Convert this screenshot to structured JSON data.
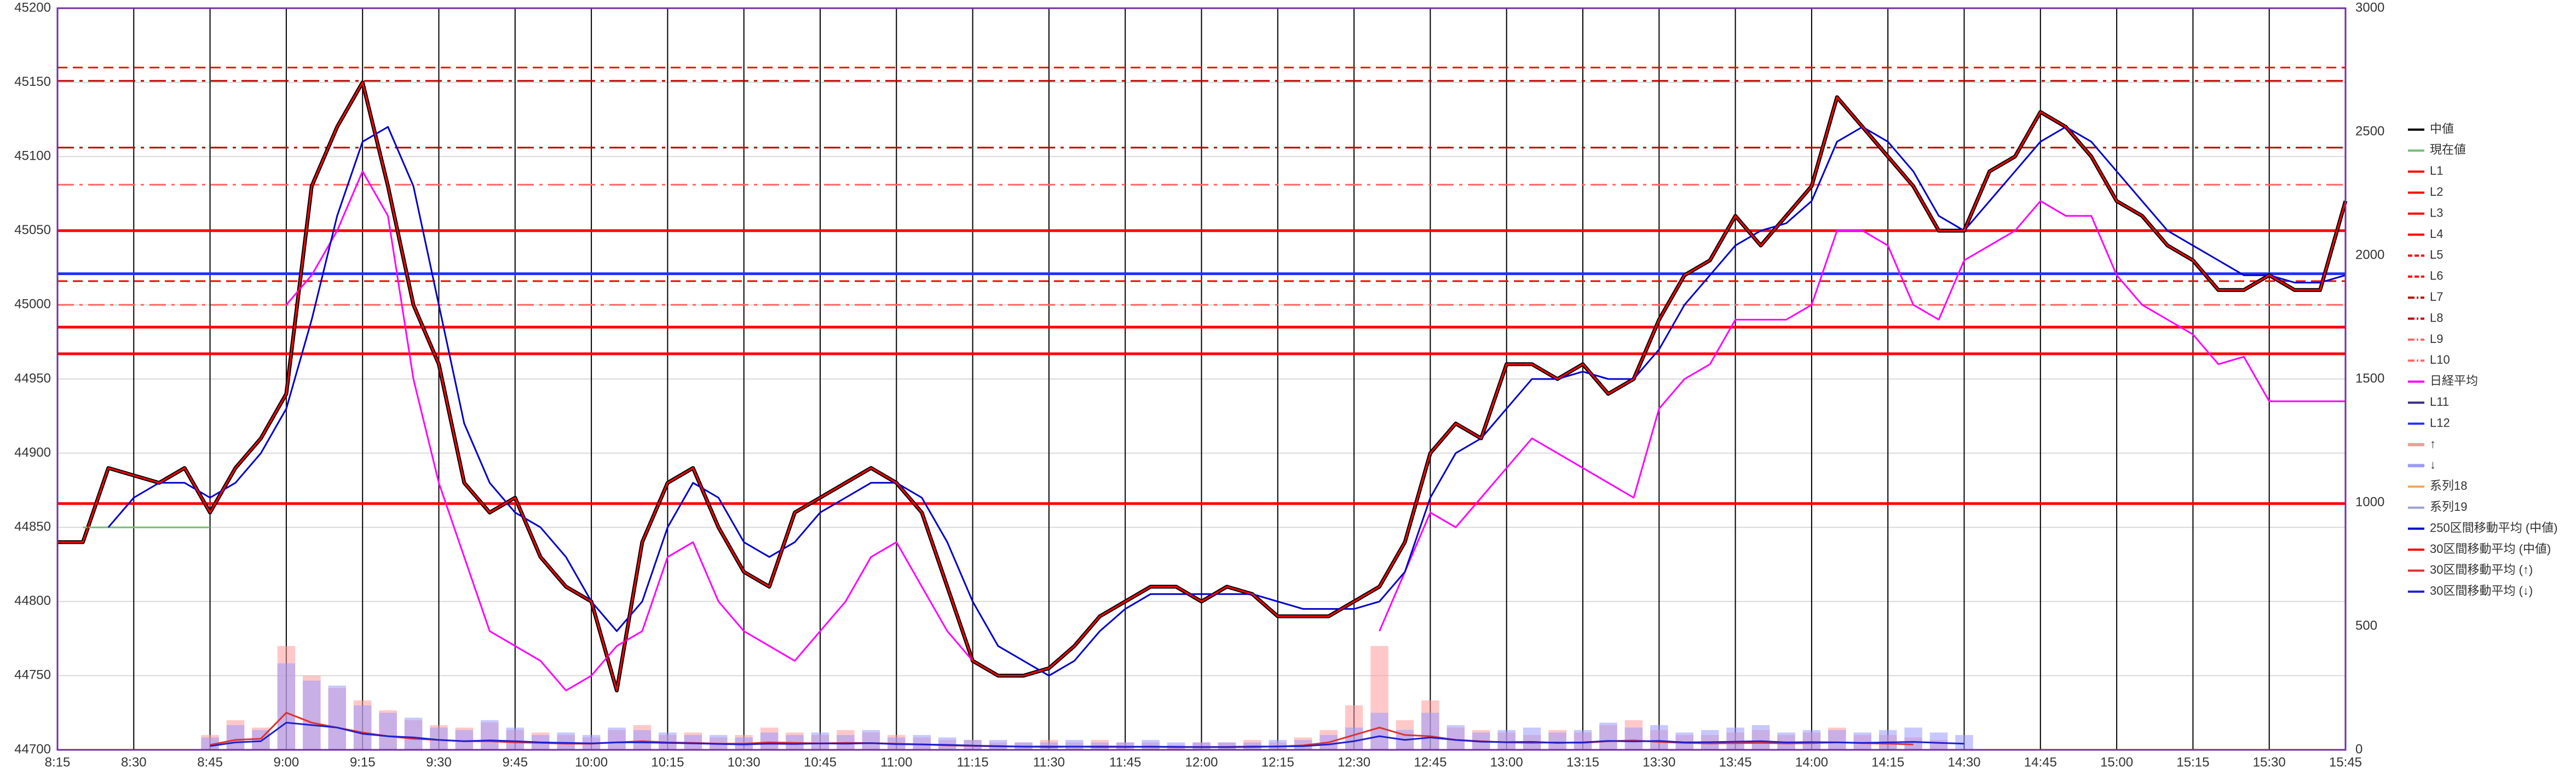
{
  "chart_data": {
    "type": "line",
    "x": [
      495,
      500,
      505,
      510,
      515,
      520,
      525,
      530,
      535,
      540,
      545,
      550,
      555,
      560,
      565,
      570,
      575,
      580,
      585,
      590,
      595,
      600,
      605,
      610,
      615,
      620,
      625,
      630,
      635,
      640,
      645,
      650,
      655,
      660,
      665,
      670,
      675,
      680,
      685,
      690,
      695,
      700,
      705,
      710,
      715,
      720,
      725,
      730,
      735,
      740,
      745,
      750,
      755,
      760,
      765,
      770,
      775,
      780,
      785,
      790,
      795,
      800,
      805,
      810,
      815,
      820,
      825,
      830,
      835,
      840,
      845,
      850,
      855,
      860,
      865,
      870,
      875,
      880,
      885,
      890,
      895,
      900,
      905,
      910,
      915,
      920,
      925,
      930,
      935,
      940,
      945
    ],
    "xlim": [
      495,
      945
    ],
    "xticks": [
      {
        "value": 495,
        "label": "8:15"
      },
      {
        "value": 510,
        "label": "8:30"
      },
      {
        "value": 525,
        "label": "8:45"
      },
      {
        "value": 540,
        "label": "9:00"
      },
      {
        "value": 555,
        "label": "9:15"
      },
      {
        "value": 570,
        "label": "9:30"
      },
      {
        "value": 585,
        "label": "9:45"
      },
      {
        "value": 600,
        "label": "10:00"
      },
      {
        "value": 615,
        "label": "10:15"
      },
      {
        "value": 630,
        "label": "10:30"
      },
      {
        "value": 645,
        "label": "10:45"
      },
      {
        "value": 660,
        "label": "11:00"
      },
      {
        "value": 675,
        "label": "11:15"
      },
      {
        "value": 690,
        "label": "11:30"
      },
      {
        "value": 705,
        "label": "11:45"
      },
      {
        "value": 720,
        "label": "12:00"
      },
      {
        "value": 735,
        "label": "12:15"
      },
      {
        "value": 750,
        "label": "12:30"
      },
      {
        "value": 765,
        "label": "12:45"
      },
      {
        "value": 780,
        "label": "13:00"
      },
      {
        "value": 795,
        "label": "13:15"
      },
      {
        "value": 810,
        "label": "13:30"
      },
      {
        "value": 825,
        "label": "13:45"
      },
      {
        "value": 840,
        "label": "14:00"
      },
      {
        "value": 855,
        "label": "14:15"
      },
      {
        "value": 870,
        "label": "14:30"
      },
      {
        "value": 885,
        "label": "14:45"
      },
      {
        "value": 900,
        "label": "15:00"
      },
      {
        "value": 915,
        "label": "15:15"
      },
      {
        "value": 930,
        "label": "15:30"
      },
      {
        "value": 945,
        "label": "15:45"
      }
    ],
    "ylim": [
      44700,
      45200
    ],
    "yticks": [
      44700,
      44750,
      44800,
      44850,
      44900,
      44950,
      45000,
      45050,
      45100,
      45150,
      45200
    ],
    "y2lim": [
      0,
      3000
    ],
    "y2ticks": [
      0,
      500,
      1000,
      1500,
      2000,
      2500,
      3000
    ],
    "grid": true,
    "legend": "right",
    "series": [
      {
        "name": "中値",
        "color": "#000000",
        "values": [
          44840,
          44840,
          44890,
          44885,
          44880,
          44890,
          44860,
          44890,
          44910,
          44940,
          45080,
          45120,
          45150,
          45080,
          45000,
          44960,
          44880,
          44860,
          44870,
          44830,
          44810,
          44800,
          44740,
          44840,
          44880,
          44890,
          44850,
          44820,
          44810,
          44860,
          44870,
          44880,
          44890,
          44880,
          44860,
          44810,
          44760,
          44750,
          44750,
          44755,
          44770,
          44790,
          44800,
          44810,
          44810,
          44800,
          44810,
          44805,
          44790,
          44790,
          44790,
          44800,
          44810,
          44840,
          44900,
          44920,
          44910,
          44960,
          44960,
          44950,
          44960,
          44940,
          44950,
          44990,
          45020,
          45030,
          45060,
          45040,
          45060,
          45080,
          45140,
          45120,
          45100,
          45080,
          45050,
          45050,
          45090,
          45100,
          45130,
          45120,
          45100,
          45070,
          45060,
          45040,
          45030,
          45010,
          45010,
          45020,
          45010,
          45010,
          45070
        ]
      },
      {
        "name": "現在値",
        "color": "#70c070",
        "values": [
          null,
          44850,
          44850,
          44850,
          44850,
          44850,
          44850,
          null,
          null,
          null,
          null,
          null,
          null,
          null,
          null,
          null,
          null,
          null,
          null,
          null,
          null,
          null,
          null,
          null,
          null,
          null,
          null,
          null,
          null,
          null,
          null,
          null,
          null,
          null,
          null,
          null,
          null,
          null,
          null,
          null,
          null,
          null,
          null,
          null,
          null,
          null,
          null,
          null,
          null,
          null,
          null,
          null,
          null,
          null,
          null,
          null,
          null,
          null,
          null,
          null,
          null,
          null,
          null,
          null,
          null,
          null,
          null,
          null,
          null,
          null,
          null,
          null,
          null,
          null,
          null,
          null,
          null,
          null,
          null,
          null,
          null,
          null,
          null,
          null,
          null,
          null,
          null,
          null,
          null,
          null,
          null
        ]
      },
      {
        "name": "L1",
        "color": "#ff0000",
        "style": "solid",
        "value": 45050
      },
      {
        "name": "L2",
        "color": "#ff0000",
        "style": "solid",
        "value": 44985
      },
      {
        "name": "L3",
        "color": "#ff0000",
        "style": "solid",
        "value": 44967
      },
      {
        "name": "L4",
        "color": "#ff0000",
        "style": "solid",
        "value": 44866
      },
      {
        "name": "L5",
        "color": "#ff0000",
        "style": "dashed",
        "value": 45160
      },
      {
        "name": "L6",
        "color": "#ff0000",
        "style": "dashed",
        "value": 45016
      },
      {
        "name": "L7",
        "color": "#c00000",
        "style": "dashdot",
        "value": 45151
      },
      {
        "name": "L8",
        "color": "#c00000",
        "style": "dashdot",
        "value": 45106
      },
      {
        "name": "L9",
        "color": "#ff6666",
        "style": "dashdot",
        "value": 45081
      },
      {
        "name": "L10",
        "color": "#ff6666",
        "style": "dashdot",
        "value": 45000
      },
      {
        "name": "日経平均",
        "color": "#ff00ff",
        "values": [
          null,
          null,
          null,
          null,
          null,
          null,
          null,
          null,
          null,
          45000,
          45020,
          45050,
          45090,
          45060,
          44950,
          44880,
          44830,
          44780,
          44770,
          44760,
          44740,
          44750,
          44770,
          44780,
          44830,
          44840,
          44800,
          44780,
          44770,
          44760,
          44780,
          44800,
          44830,
          44840,
          44810,
          44780,
          44760,
          null,
          null,
          null,
          null,
          null,
          null,
          null,
          null,
          null,
          null,
          null,
          null,
          null,
          null,
          null,
          44780,
          44820,
          44860,
          44850,
          44870,
          44890,
          44910,
          44900,
          44890,
          44880,
          44870,
          44930,
          44950,
          44960,
          44990,
          44990,
          44990,
          45000,
          45050,
          45050,
          45040,
          45000,
          44990,
          45030,
          45040,
          45050,
          45070,
          45060,
          45060,
          45020,
          45000,
          44990,
          44980,
          44960,
          44965,
          44935,
          44935,
          44935,
          44935
        ]
      },
      {
        "name": "L11",
        "color": "#3a2a8a",
        "style": "solid",
        "value": 45021
      },
      {
        "name": "L12",
        "color": "#2233ff",
        "style": "solid",
        "value": 45021
      },
      {
        "name": "↑",
        "color": "#ff9a9a",
        "kind": "bar",
        "axis": "y2",
        "values": [
          null,
          null,
          null,
          null,
          null,
          null,
          60,
          120,
          90,
          420,
          300,
          250,
          200,
          160,
          120,
          100,
          90,
          110,
          80,
          70,
          60,
          50,
          80,
          100,
          60,
          70,
          50,
          60,
          90,
          70,
          60,
          80,
          70,
          60,
          50,
          40,
          40,
          30,
          30,
          40,
          30,
          40,
          30,
          30,
          20,
          30,
          30,
          40,
          30,
          50,
          80,
          180,
          420,
          120,
          200,
          90,
          80,
          70,
          60,
          80,
          70,
          100,
          120,
          80,
          60,
          60,
          70,
          80,
          60,
          70,
          90,
          60,
          60,
          50,
          40,
          null,
          null,
          null,
          null,
          null,
          null,
          null,
          null,
          null,
          null,
          null,
          null,
          null,
          null,
          null,
          null
        ]
      },
      {
        "name": "↓",
        "color": "#9a9aff",
        "kind": "bar",
        "axis": "y2",
        "values": [
          null,
          null,
          null,
          null,
          null,
          null,
          50,
          100,
          80,
          350,
          280,
          260,
          180,
          150,
          130,
          90,
          80,
          120,
          90,
          60,
          70,
          60,
          90,
          80,
          70,
          60,
          60,
          50,
          70,
          60,
          70,
          60,
          80,
          50,
          60,
          50,
          40,
          40,
          30,
          30,
          40,
          30,
          30,
          40,
          30,
          30,
          30,
          30,
          40,
          40,
          60,
          90,
          150,
          80,
          150,
          100,
          70,
          80,
          90,
          70,
          80,
          110,
          90,
          100,
          70,
          80,
          90,
          100,
          70,
          80,
          80,
          70,
          80,
          90,
          70,
          60,
          null,
          null,
          null,
          null,
          null,
          null,
          null,
          null,
          null,
          null,
          null,
          null,
          null,
          null,
          null
        ]
      },
      {
        "name": "系列18",
        "color": "#f4a460"
      },
      {
        "name": "系列19",
        "color": "#a0a0d0"
      },
      {
        "name": "250区間移動平均 (中値)",
        "color": "#0000cc",
        "values": [
          null,
          null,
          44850,
          44870,
          44880,
          44880,
          44870,
          44880,
          44900,
          44930,
          44990,
          45060,
          45110,
          45120,
          45080,
          45000,
          44920,
          44880,
          44860,
          44850,
          44830,
          44800,
          44780,
          44800,
          44850,
          44880,
          44870,
          44840,
          44830,
          44840,
          44860,
          44870,
          44880,
          44880,
          44870,
          44840,
          44800,
          44770,
          44760,
          44750,
          44760,
          44780,
          44795,
          44805,
          44805,
          44805,
          44805,
          44805,
          44800,
          44795,
          44795,
          44795,
          44800,
          44820,
          44870,
          44900,
          44910,
          44930,
          44950,
          44950,
          44955,
          44950,
          44950,
          44970,
          45000,
          45020,
          45040,
          45050,
          45055,
          45070,
          45110,
          45120,
          45110,
          45090,
          45060,
          45050,
          45070,
          45090,
          45110,
          45120,
          45110,
          45090,
          45070,
          45050,
          45040,
          45030,
          45020,
          45020,
          45015,
          45015,
          45020
        ]
      },
      {
        "name": "30区間移動平均 (中値)",
        "color": "#ff0000",
        "values": [
          44840,
          44840,
          44890,
          44885,
          44880,
          44890,
          44860,
          44890,
          44910,
          44940,
          45080,
          45120,
          45150,
          45080,
          45000,
          44960,
          44880,
          44860,
          44870,
          44830,
          44810,
          44800,
          44740,
          44840,
          44880,
          44890,
          44850,
          44820,
          44810,
          44860,
          44870,
          44880,
          44890,
          44880,
          44860,
          44810,
          44760,
          44750,
          44750,
          44755,
          44770,
          44790,
          44800,
          44810,
          44810,
          44800,
          44810,
          44805,
          44790,
          44790,
          44790,
          44800,
          44810,
          44840,
          44900,
          44920,
          44910,
          44960,
          44960,
          44950,
          44960,
          44940,
          44950,
          44990,
          45020,
          45030,
          45060,
          45040,
          45060,
          45080,
          45140,
          45120,
          45100,
          45080,
          45050,
          45050,
          45090,
          45100,
          45130,
          45120,
          45100,
          45070,
          45060,
          45040,
          45030,
          45010,
          45010,
          45020,
          45010,
          45010,
          45070
        ]
      },
      {
        "name": "30区間移動平均 (↑)",
        "color": "#e03030",
        "axis": "y2",
        "values": [
          null,
          null,
          null,
          null,
          null,
          null,
          20,
          40,
          45,
          150,
          110,
          90,
          70,
          55,
          45,
          40,
          35,
          35,
          30,
          28,
          25,
          25,
          30,
          35,
          30,
          28,
          25,
          25,
          30,
          28,
          26,
          28,
          27,
          25,
          22,
          18,
          16,
          14,
          13,
          14,
          13,
          14,
          13,
          12,
          11,
          12,
          12,
          14,
          13,
          18,
          30,
          60,
          90,
          60,
          55,
          40,
          35,
          30,
          28,
          30,
          28,
          35,
          38,
          32,
          28,
          26,
          27,
          28,
          26,
          27,
          30,
          27,
          25,
          22,
          null,
          null,
          null,
          null,
          null,
          null,
          null,
          null,
          null,
          null,
          null,
          null,
          null,
          null,
          null,
          null,
          null
        ]
      },
      {
        "name": "30区間移動平均 (↓)",
        "color": "#2020d0",
        "axis": "y2",
        "values": [
          null,
          null,
          null,
          null,
          null,
          null,
          15,
          30,
          35,
          110,
          100,
          90,
          65,
          55,
          50,
          40,
          35,
          38,
          35,
          30,
          28,
          26,
          30,
          30,
          28,
          26,
          24,
          22,
          25,
          24,
          26,
          25,
          27,
          23,
          22,
          20,
          17,
          15,
          13,
          12,
          13,
          12,
          12,
          13,
          12,
          11,
          11,
          12,
          14,
          15,
          22,
          35,
          55,
          40,
          50,
          40,
          33,
          31,
          32,
          28,
          30,
          36,
          34,
          36,
          30,
          31,
          33,
          35,
          30,
          31,
          30,
          28,
          30,
          32,
          28,
          25,
          null,
          null,
          null,
          null,
          null,
          null,
          null,
          null,
          null,
          null,
          null,
          null,
          null,
          null,
          null
        ]
      }
    ]
  }
}
